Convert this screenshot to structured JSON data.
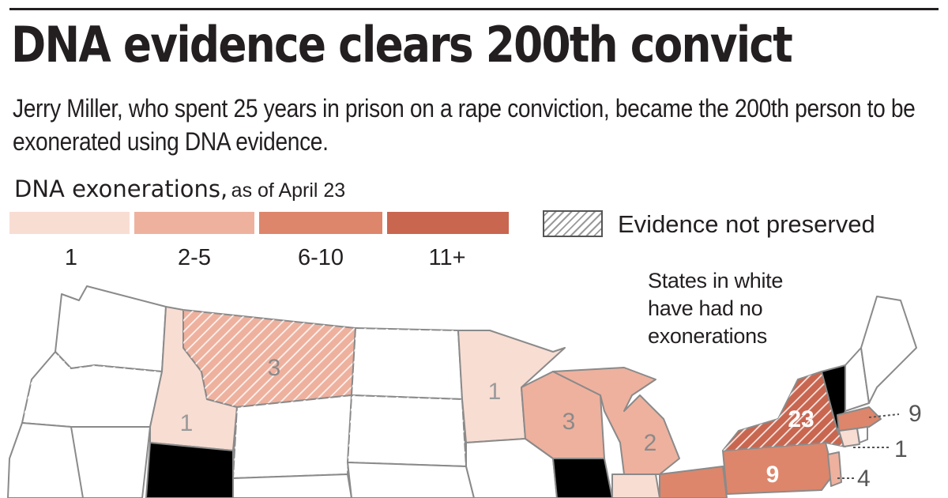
{
  "headline": "DNA evidence clears 200th convict",
  "subhead": "Jerry Miller, who spent 25 years in prison on a rape conviction, became the 200th person to be exonerated using DNA evidence.",
  "legend": {
    "title": "DNA exonerations,",
    "subtitle": "as of April 23",
    "bins": [
      {
        "label": "1",
        "color": "#f8ddd3"
      },
      {
        "label": "2-5",
        "color": "#eeb19e"
      },
      {
        "label": "6-10",
        "color": "#dd866b"
      },
      {
        "label": "11+",
        "color": "#c96650"
      }
    ],
    "hatch_label": "Evidence not preserved"
  },
  "note": "States in white have had no exonerations",
  "states": {
    "washington": {
      "count": null,
      "hatched": false
    },
    "oregon": {
      "count": null,
      "hatched": true
    },
    "california": {
      "count": null,
      "hatched": false
    },
    "idaho": {
      "count": "1",
      "hatched": false
    },
    "montana": {
      "count": "3",
      "hatched": true
    },
    "wyoming": {
      "count": null,
      "hatched": true
    },
    "north_dakota": {
      "count": null,
      "hatched": true
    },
    "south_dakota": {
      "count": null,
      "hatched": true
    },
    "minnesota": {
      "count": "1",
      "hatched": false
    },
    "wisconsin": {
      "count": "3",
      "hatched": false
    },
    "michigan": {
      "count": "2",
      "hatched": false
    },
    "new_york": {
      "count": "23",
      "hatched": true
    },
    "pennsylvania": {
      "count": "9",
      "hatched": false
    },
    "massachusetts": {
      "count": "9",
      "hatched": false
    },
    "connecticut": {
      "count": "1",
      "hatched": false
    },
    "new_jersey": {
      "count": "4",
      "hatched": false
    }
  }
}
